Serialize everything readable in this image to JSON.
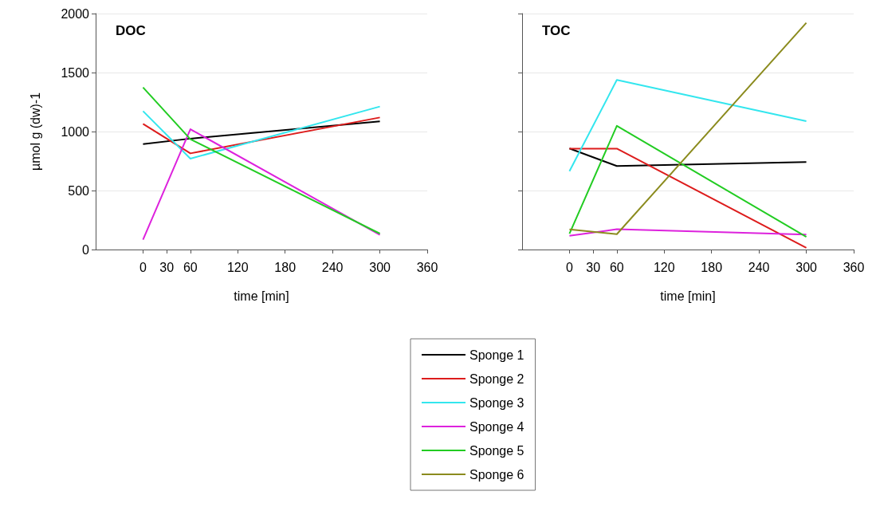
{
  "chart_data": [
    {
      "type": "line",
      "title": "DOC",
      "xlabel": "time [min]",
      "ylabel": "µmol g (dw)-1",
      "x": [
        0,
        60,
        300
      ],
      "xlim": [
        -60,
        360
      ],
      "xticks": [
        0,
        30,
        60,
        120,
        180,
        240,
        300,
        360
      ],
      "ylim": [
        0,
        2000
      ],
      "yticks": [
        0,
        500,
        1000,
        1500,
        2000
      ],
      "grid": "y",
      "legend": false,
      "marker": "none",
      "line_style": "solid",
      "series": [
        {
          "color": "#000000",
          "values": [
            894,
            940,
            1086
          ]
        },
        {
          "color": "#dd1c1c",
          "values": [
            1065,
            815,
            1119
          ]
        },
        {
          "color": "#33e6ee",
          "values": [
            1173,
            770,
            1212
          ]
        },
        {
          "color": "#dd22dd",
          "values": [
            83,
            1020,
            124
          ]
        },
        {
          "color": "#22cc22",
          "values": [
            1374,
            935,
            135
          ]
        }
      ]
    },
    {
      "type": "line",
      "title": "TOC",
      "xlabel": "time [min]",
      "x": [
        0,
        60,
        300
      ],
      "xlim": [
        -60,
        360
      ],
      "xticks": [
        0,
        30,
        60,
        120,
        180,
        240,
        300,
        360
      ],
      "ylim": [
        0,
        2000
      ],
      "yticks": [
        0,
        500,
        1000,
        1500,
        2000
      ],
      "grid": "y",
      "legend": "bottom",
      "tick_labels": "x",
      "marker": "none",
      "line_style": "solid",
      "series": [
        {
          "name": "Sponge 1",
          "color": "#000000",
          "values": [
            856,
            708,
            742
          ]
        },
        {
          "name": "Sponge 2",
          "color": "#dd1c1c",
          "values": [
            855,
            855,
            15
          ]
        },
        {
          "name": "Sponge 3",
          "color": "#33e6ee",
          "values": [
            664,
            1437,
            1088
          ]
        },
        {
          "name": "Sponge 4",
          "color": "#dd22dd",
          "values": [
            116,
            172,
            127
          ]
        },
        {
          "name": "Sponge 5",
          "color": "#22cc22",
          "values": [
            134,
            1048,
            107
          ]
        },
        {
          "name": "Sponge 6",
          "color": "#8b8b1e",
          "values": [
            170,
            130,
            1922
          ]
        }
      ]
    }
  ]
}
